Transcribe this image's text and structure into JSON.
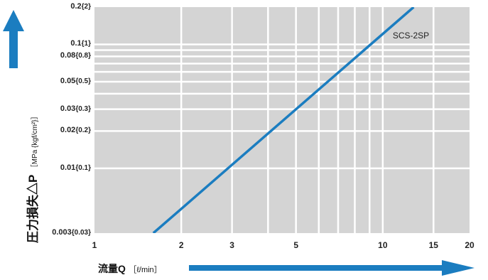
{
  "chart_data": {
    "type": "line",
    "xscale": "log",
    "yscale": "log",
    "xlim": [
      1,
      20
    ],
    "ylim": [
      0.003,
      0.2
    ],
    "xticks": [
      1,
      2,
      3,
      5,
      10,
      15,
      20
    ],
    "xtick_labels": [
      "1",
      "2",
      "3",
      "5",
      "10",
      "15",
      "20"
    ],
    "yticks": [
      0.003,
      0.01,
      0.02,
      0.03,
      0.05,
      0.08,
      0.1,
      0.2
    ],
    "ytick_labels": [
      {
        "main": "0.003",
        "sub": "{0.03}"
      },
      {
        "main": "0.01",
        "sub": "{0.1}"
      },
      {
        "main": "0.02",
        "sub": "{0.2}"
      },
      {
        "main": "0.03",
        "sub": "{0.3}"
      },
      {
        "main": "0.05",
        "sub": "{0.5}"
      },
      {
        "main": "0.08",
        "sub": "{0.8}"
      },
      {
        "main": "0.1",
        "sub": "{1}"
      },
      {
        "main": "0.2",
        "sub": "{2}"
      }
    ],
    "x_grid": [
      2,
      3,
      4,
      5,
      6,
      7,
      8,
      9,
      10,
      15
    ],
    "y_grid": [
      0.01,
      0.02,
      0.03,
      0.04,
      0.05,
      0.06,
      0.07,
      0.08,
      0.09,
      0.1
    ],
    "grid": true,
    "xlabel": "流量Q",
    "xlabel_unit": "［ℓ/min］",
    "ylabel": "圧力損失△P",
    "ylabel_unit": "［MPa {kgf/cm²}］",
    "series": [
      {
        "name": "SCS-2SP",
        "x": [
          1.6,
          12.8
        ],
        "y": [
          0.003,
          0.2
        ]
      }
    ],
    "colors": {
      "plot_bg": "#d4d4d4",
      "grid": "#ffffff",
      "line": "#1b7dc0",
      "arrow": "#1b7dc0"
    }
  }
}
